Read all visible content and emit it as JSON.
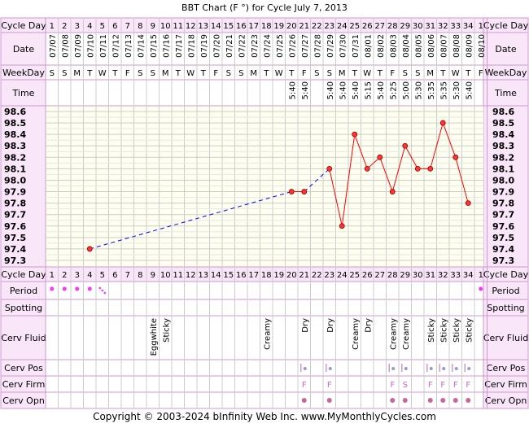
{
  "title": "BBT Chart (F °) for Cycle July 7, 2013",
  "footer": "Copyright © 2003-2024 bInfinity Web Inc.    www.MyMonthlyCycles.com",
  "row_labels": {
    "cycle_day": "Cycle Day",
    "date": "Date",
    "weekday": "WeekDay",
    "time": "Time",
    "period": "Period",
    "spotting": "Spotting",
    "cerv_fluid": "Cerv Fluid",
    "cerv_pos": "Cerv Pos",
    "cerv_firm": "Cerv Firm",
    "cerv_opn": "Cerv Opn"
  },
  "colors": {
    "frame": "#cc99cc",
    "header_bg": "#f9e6f9",
    "plot_bg": "#fffff0",
    "grid": "#cccccc",
    "line": "#ff0000",
    "dashed": "#0000ff",
    "marker": "#cc99cc"
  },
  "columns": [
    {
      "day": "1",
      "date": "07/07",
      "wd": "S",
      "time": ""
    },
    {
      "day": "2",
      "date": "07/08",
      "wd": "S",
      "time": ""
    },
    {
      "day": "3",
      "date": "07/09",
      "wd": "M",
      "time": ""
    },
    {
      "day": "4",
      "date": "07/10",
      "wd": "T",
      "time": ""
    },
    {
      "day": "5",
      "date": "07/11",
      "wd": "W",
      "time": ""
    },
    {
      "day": "6",
      "date": "07/12",
      "wd": "T",
      "time": ""
    },
    {
      "day": "7",
      "date": "07/13",
      "wd": "F",
      "time": ""
    },
    {
      "day": "8",
      "date": "07/14",
      "wd": "S",
      "time": ""
    },
    {
      "day": "9",
      "date": "07/15",
      "wd": "S",
      "time": ""
    },
    {
      "day": "10",
      "date": "07/16",
      "wd": "M",
      "time": ""
    },
    {
      "day": "11",
      "date": "07/17",
      "wd": "T",
      "time": ""
    },
    {
      "day": "12",
      "date": "07/18",
      "wd": "W",
      "time": ""
    },
    {
      "day": "13",
      "date": "07/19",
      "wd": "T",
      "time": ""
    },
    {
      "day": "14",
      "date": "07/20",
      "wd": "F",
      "time": ""
    },
    {
      "day": "15",
      "date": "07/21",
      "wd": "S",
      "time": ""
    },
    {
      "day": "16",
      "date": "07/22",
      "wd": "S",
      "time": ""
    },
    {
      "day": "17",
      "date": "07/23",
      "wd": "M",
      "time": ""
    },
    {
      "day": "18",
      "date": "07/24",
      "wd": "T",
      "time": ""
    },
    {
      "day": "19",
      "date": "07/25",
      "wd": "W",
      "time": ""
    },
    {
      "day": "20",
      "date": "07/26",
      "wd": "T",
      "time": "5:40"
    },
    {
      "day": "21",
      "date": "07/27",
      "wd": "F",
      "time": "5:40"
    },
    {
      "day": "22",
      "date": "07/28",
      "wd": "S",
      "time": ""
    },
    {
      "day": "23",
      "date": "07/29",
      "wd": "S",
      "time": "5:40"
    },
    {
      "day": "24",
      "date": "07/30",
      "wd": "M",
      "time": "5:40"
    },
    {
      "day": "25",
      "date": "07/31",
      "wd": "T",
      "time": "5:40"
    },
    {
      "day": "26",
      "date": "08/01",
      "wd": "W",
      "time": "5:15"
    },
    {
      "day": "27",
      "date": "08/02",
      "wd": "T",
      "time": "5:40"
    },
    {
      "day": "28",
      "date": "08/03",
      "wd": "F",
      "time": "5:25"
    },
    {
      "day": "29",
      "date": "08/04",
      "wd": "S",
      "time": "5:00"
    },
    {
      "day": "30",
      "date": "08/05",
      "wd": "S",
      "time": "5:30"
    },
    {
      "day": "31",
      "date": "08/06",
      "wd": "M",
      "time": "5:35"
    },
    {
      "day": "32",
      "date": "08/07",
      "wd": "T",
      "time": "5:35"
    },
    {
      "day": "33",
      "date": "08/08",
      "wd": "W",
      "time": "5:30"
    },
    {
      "day": "34",
      "date": "08/09",
      "wd": "T",
      "time": "5:40"
    },
    {
      "day": "1",
      "date": "08/10",
      "wd": "F",
      "time": ""
    }
  ],
  "chart_data": {
    "type": "line",
    "x": [
      4,
      20,
      21,
      23,
      24,
      25,
      26,
      27,
      28,
      29,
      30,
      31,
      32,
      33,
      34
    ],
    "y": [
      97.4,
      97.9,
      97.9,
      98.1,
      97.6,
      98.4,
      98.1,
      98.2,
      97.9,
      98.3,
      98.1,
      98.1,
      98.5,
      98.2,
      97.8
    ],
    "dashed_gap_after_index": [
      0,
      2
    ],
    "ylim": [
      97.3,
      98.6
    ],
    "yticks": [
      "98.6",
      "98.5",
      "98.4",
      "98.3",
      "98.2",
      "98.1",
      "98.0",
      "97.9",
      "97.8",
      "97.7",
      "97.6",
      "97.5",
      "97.4",
      "97.3"
    ],
    "xlabel": "Cycle Day",
    "ylabel": ""
  },
  "period": [
    {
      "col": 1,
      "type": "dot"
    },
    {
      "col": 2,
      "type": "dot"
    },
    {
      "col": 3,
      "type": "dot"
    },
    {
      "col": 4,
      "type": "dot"
    },
    {
      "col": 5,
      "type": "spot"
    },
    {
      "col": 35,
      "type": "dot"
    }
  ],
  "cerv_fluid": [
    {
      "col": 9,
      "text": "Eggwhite"
    },
    {
      "col": 10,
      "text": "Sticky"
    },
    {
      "col": 18,
      "text": "Creamy"
    },
    {
      "col": 21,
      "text": "Dry"
    },
    {
      "col": 23,
      "text": "Dry"
    },
    {
      "col": 25,
      "text": "Creamy"
    },
    {
      "col": 26,
      "text": "Dry"
    },
    {
      "col": 28,
      "text": "Creamy"
    },
    {
      "col": 29,
      "text": "Creamy"
    },
    {
      "col": 31,
      "text": "Sticky"
    },
    {
      "col": 32,
      "text": "Sticky"
    },
    {
      "col": 33,
      "text": "Sticky"
    },
    {
      "col": 34,
      "text": "Sticky"
    }
  ],
  "cerv_pos": [
    21,
    23,
    28,
    29,
    31,
    32,
    33,
    34
  ],
  "cerv_firm": [
    {
      "col": 21,
      "text": "F"
    },
    {
      "col": 23,
      "text": "F"
    },
    {
      "col": 28,
      "text": "F"
    },
    {
      "col": 29,
      "text": "S"
    },
    {
      "col": 31,
      "text": "F"
    },
    {
      "col": 32,
      "text": "F"
    },
    {
      "col": 33,
      "text": "F"
    },
    {
      "col": 34,
      "text": "F"
    }
  ],
  "cerv_opn": [
    21,
    23,
    28,
    29,
    31,
    32,
    33,
    34
  ]
}
